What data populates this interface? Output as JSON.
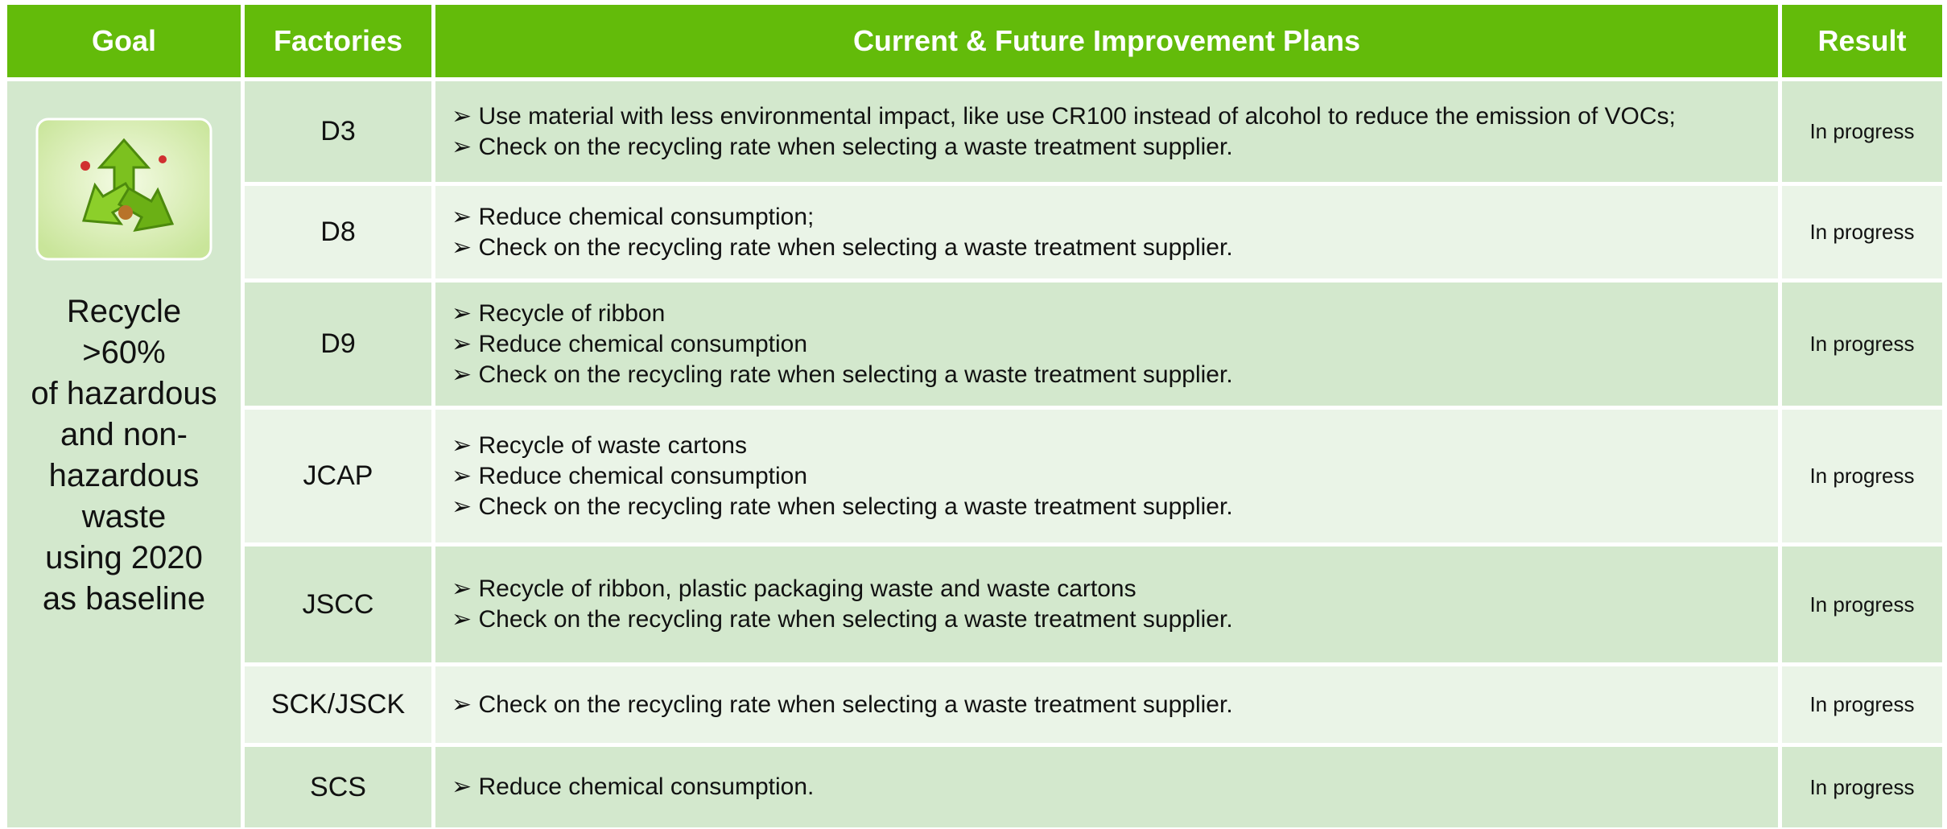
{
  "table": {
    "headers": [
      "Goal",
      "Factories",
      "Current & Future Improvement Plans",
      "Result"
    ],
    "goal_lines": [
      "Recycle",
      ">60%",
      "of hazardous",
      "and non-",
      "hazardous",
      "waste",
      "using 2020",
      "as baseline"
    ],
    "rows": [
      {
        "factory": "D3",
        "plans": [
          "Use material with less environmental impact, like use CR100 instead of alcohol to reduce the emission of VOCs;",
          "Check on the recycling rate when selecting a waste treatment supplier."
        ],
        "result": "In progress"
      },
      {
        "factory": "D8",
        "plans": [
          "Reduce chemical consumption;",
          "Check on the recycling rate when selecting a waste treatment supplier."
        ],
        "result": "In progress"
      },
      {
        "factory": "D9",
        "plans": [
          "Recycle of ribbon",
          "Reduce chemical consumption",
          "Check on the recycling rate when selecting a waste treatment supplier."
        ],
        "result": "In progress"
      },
      {
        "factory": "JCAP",
        "plans": [
          "Recycle of waste cartons",
          "Reduce chemical consumption",
          "Check on the recycling rate when selecting a waste treatment supplier."
        ],
        "result": "In progress"
      },
      {
        "factory": "JSCC",
        "plans": [
          "Recycle of ribbon, plastic packaging waste and waste cartons",
          "Check on the recycling rate when selecting a waste treatment supplier."
        ],
        "result": "In progress"
      },
      {
        "factory": "SCK/JSCK",
        "plans": [
          "Check on the recycling rate when selecting a waste treatment supplier."
        ],
        "result": "In progress"
      },
      {
        "factory": "SCS",
        "plans": [
          "Reduce chemical consumption."
        ],
        "result": "In progress"
      }
    ]
  }
}
